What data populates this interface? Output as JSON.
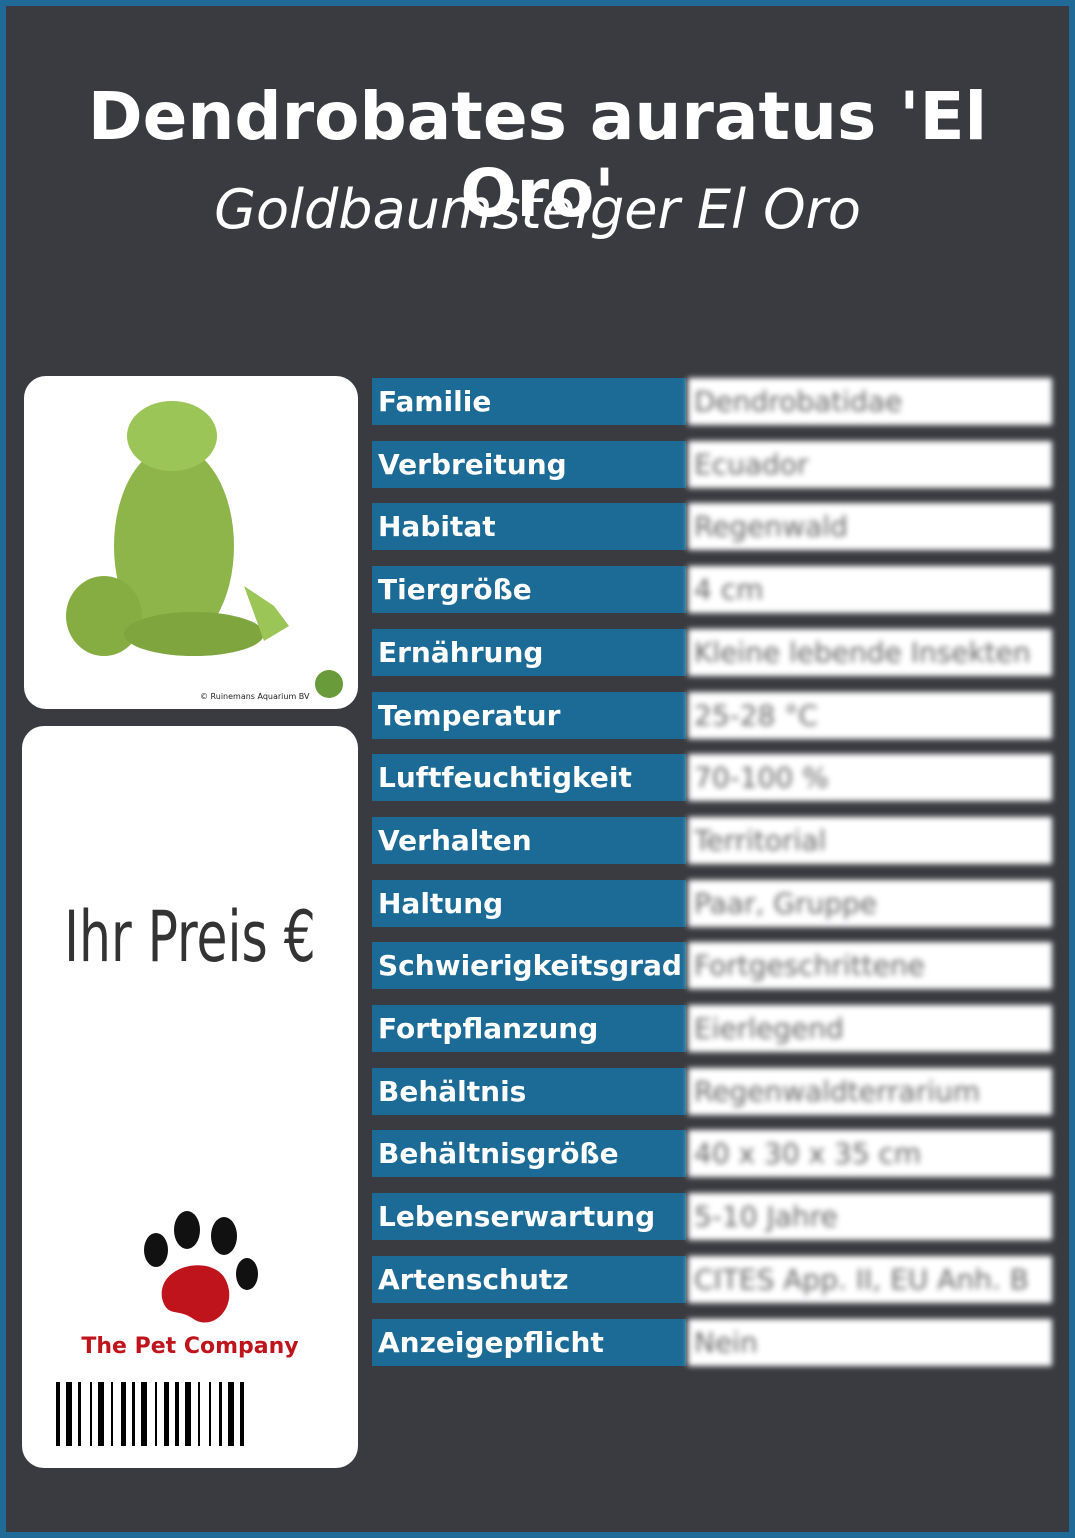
{
  "header": {
    "title": "Dendrobates auratus 'El Oro'",
    "subtitle": "Goldbaumsteiger El Oro"
  },
  "image": {
    "caption": "© Ruinemans Aquarium BV"
  },
  "price": {
    "label": "Ihr Preis €"
  },
  "brand": {
    "name": "The Pet Company"
  },
  "table": {
    "rows": [
      [
        "Familie",
        "Dendrobatidae"
      ],
      [
        "Verbreitung",
        "Ecuador"
      ],
      [
        "Habitat",
        "Regenwald"
      ],
      [
        "Tiergröße",
        "4 cm"
      ],
      [
        "Ernährung",
        "Kleine lebende Insekten"
      ],
      [
        "Temperatur",
        "25-28 °C"
      ],
      [
        "Luftfeuchtigkeit",
        "70-100 %"
      ],
      [
        "Verhalten",
        "Territorial"
      ],
      [
        "Haltung",
        "Paar, Gruppe"
      ],
      [
        "Schwierigkeitsgrad",
        "Fortgeschrittene"
      ],
      [
        "Fortpflanzung",
        "Eierlegend"
      ],
      [
        "Behältnis",
        "Regenwaldterrarium"
      ],
      [
        "Behältnisgröße",
        "40 x 30 x 35 cm"
      ],
      [
        "Lebenserwartung",
        "5-10 Jahre"
      ],
      [
        "Artenschutz",
        "CITES App. II, EU Anh. B"
      ],
      [
        "Anzeigepflicht",
        "Nein"
      ]
    ]
  }
}
